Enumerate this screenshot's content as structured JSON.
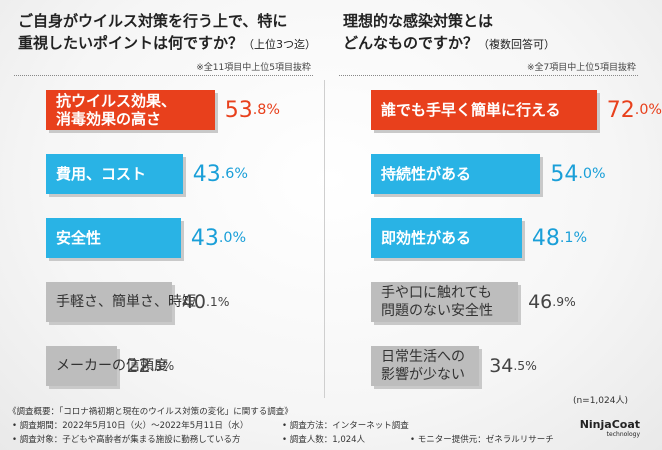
{
  "chart_data": [
    {
      "type": "bar",
      "title": "ご自身がウイルス対策を行う上で、特に重視したいポイントは何ですか？",
      "subtitle": "（上位3つ迄）",
      "note": "※全11項目中上位5項目抜粋",
      "categories": [
        "抗ウイルス効果、消毒効果の高さ",
        "費用、コスト",
        "安全性",
        "手軽さ、簡単さ、時短",
        "メーカーの信頼度"
      ],
      "values": [
        53.8,
        43.6,
        43.0,
        40.1,
        22.5
      ],
      "colors": [
        "#e8401c",
        "#29b3e5",
        "#29b3e5",
        "#bdbdbd",
        "#bdbdbd"
      ],
      "value_labels": [
        {
          "int": "53",
          "dec": ".8%"
        },
        {
          "int": "43",
          "dec": ".6%"
        },
        {
          "int": "43",
          "dec": ".0%"
        },
        {
          "int": "40",
          "dec": ".1%"
        },
        {
          "int": "22",
          "dec": ".5%"
        }
      ],
      "ylim": [
        0,
        100
      ]
    },
    {
      "type": "bar",
      "title": "理想的な感染対策とはどんなものですか？",
      "subtitle": "（複数回答可）",
      "note": "※全7項目中上位5項目抜粋",
      "categories": [
        "誰でも手早く簡単に行える",
        "持続性がある",
        "即効性がある",
        "手や口に触れても問題のない安全性",
        "日常生活への影響が少ない"
      ],
      "values": [
        72.0,
        54.0,
        48.1,
        46.9,
        34.5
      ],
      "colors": [
        "#e8401c",
        "#29b3e5",
        "#29b3e5",
        "#bdbdbd",
        "#bdbdbd"
      ],
      "value_labels": [
        {
          "int": "72",
          "dec": ".0%"
        },
        {
          "int": "54",
          "dec": ".0%"
        },
        {
          "int": "48",
          "dec": ".1%"
        },
        {
          "int": "46",
          "dec": ".9%"
        },
        {
          "int": "34",
          "dec": ".5%"
        }
      ],
      "ylim": [
        0,
        100
      ]
    }
  ],
  "left_title": {
    "line1": "ご自身がウイルス対策を行う上で、特に",
    "line2": "重視したいポイントは何ですか？",
    "sub": "（上位3つ迄）"
  },
  "right_title": {
    "line1": "理想的な感染対策とは",
    "line2": "どんなものですか？",
    "sub": "（複数回答可）"
  },
  "left_bar_labels": [
    "抗ウイルス効果、",
    "消毒効果の高さ",
    "費用、コスト",
    "安全性",
    "手軽さ、簡単さ、時短",
    "メーカーの信頼度"
  ],
  "right_bar_labels": [
    "誰でも手早く簡単に行える",
    "持続性がある",
    "即効性がある",
    "手や口に触れても",
    "問題のない安全性",
    "日常生活への",
    "影響が少ない"
  ],
  "n_label": "(n=1,024人)",
  "footer": {
    "overview": "《調査概要：「コロナ禍初期と現在のウイルス対策の変化」に関する調査》",
    "period": "• 調査期間：2022年5月10日（火）～2022年5月11日（水）",
    "method": "• 調査方法：インターネット調査",
    "target": "• 調査対象：子どもや高齢者が集まる施設に勤務している方",
    "count": "• 調査人数：1,024人",
    "provider": "• モニター提供元：ゼネラルリサーチ"
  },
  "logo": {
    "name": "NinjaCoat",
    "sub": "technology"
  }
}
